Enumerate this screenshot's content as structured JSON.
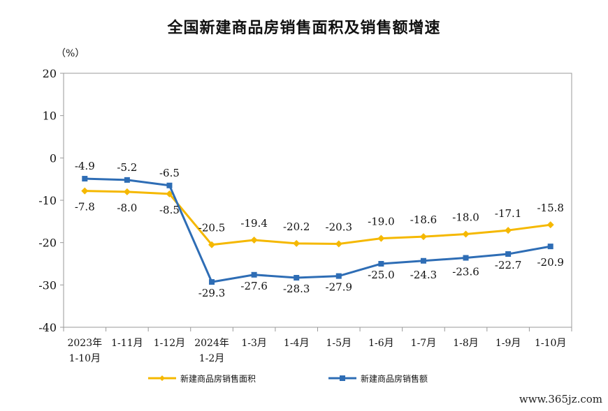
{
  "chart_data": {
    "type": "line",
    "title": "全国新建商品房销售面积及销售额增速",
    "ylabel": "（%）",
    "ylim": [
      -40,
      20
    ],
    "yticks": [
      20,
      10,
      0,
      -10,
      -20,
      -30,
      -40
    ],
    "categories": [
      [
        "2023年",
        "1-10月"
      ],
      [
        "1-11月"
      ],
      [
        "1-12月"
      ],
      [
        "2024年",
        "1-2月"
      ],
      [
        "1-3月"
      ],
      [
        "1-4月"
      ],
      [
        "1-5月"
      ],
      [
        "1-6月"
      ],
      [
        "1-7月"
      ],
      [
        "1-8月"
      ],
      [
        "1-9月"
      ],
      [
        "1-10月"
      ]
    ],
    "series": [
      {
        "name": "新建商品房销售面积",
        "color": "#F5B800",
        "marker": "diamond",
        "values": [
          -7.8,
          -8.0,
          -8.5,
          -20.5,
          -19.4,
          -20.2,
          -20.3,
          -19.0,
          -18.6,
          -18.0,
          -17.1,
          -15.8
        ],
        "labels": [
          "-7.8",
          "-8.0",
          "-8.5",
          "-20.5",
          "-19.4",
          "-20.2",
          "-20.3",
          "-19.0",
          "-18.6",
          "-18.0",
          "-17.1",
          "-15.8"
        ]
      },
      {
        "name": "新建商品房销售额",
        "color": "#2E6DB5",
        "marker": "square",
        "values": [
          -4.9,
          -5.2,
          -6.5,
          -29.3,
          -27.6,
          -28.3,
          -27.9,
          -25.0,
          -24.3,
          -23.6,
          -22.7,
          -20.9
        ],
        "labels": [
          "-4.9",
          "-5.2",
          "-6.5",
          "-29.3",
          "-27.6",
          "-28.3",
          "-27.9",
          "-25.0",
          "-24.3",
          "-23.6",
          "-22.7",
          "-20.9"
        ]
      }
    ],
    "legend": "bottom",
    "grid": false
  },
  "watermark": "www.365jz.com"
}
